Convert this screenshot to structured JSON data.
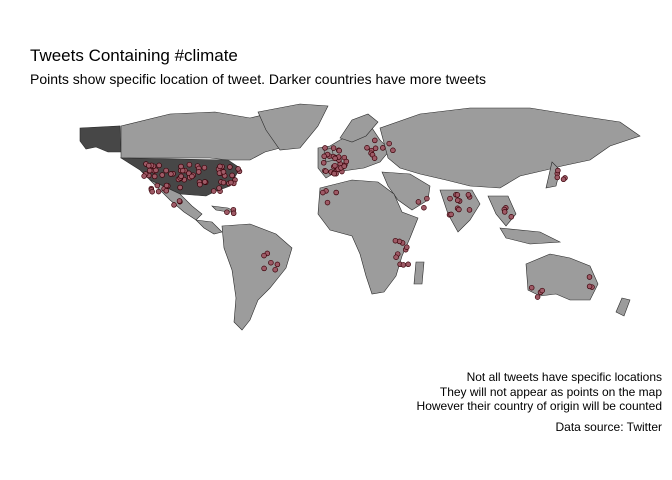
{
  "map": {
    "title": "Tweets Containing #climate",
    "subtitle": "Points show specific location of tweet. Darker countries have more tweets",
    "colors": {
      "background": "#ffffff",
      "country_default": "#9c9c9c",
      "country_high": "#474747",
      "border": "#2a2a2a",
      "point_fill": "#9e5a66",
      "point_stroke": "#3a0008"
    },
    "caption_lines": [
      "Not all tweets have specific locations",
      "They will not appear as points on the map",
      "However their country of origin will be counted"
    ],
    "source": "Data source: Twitter"
  }
}
